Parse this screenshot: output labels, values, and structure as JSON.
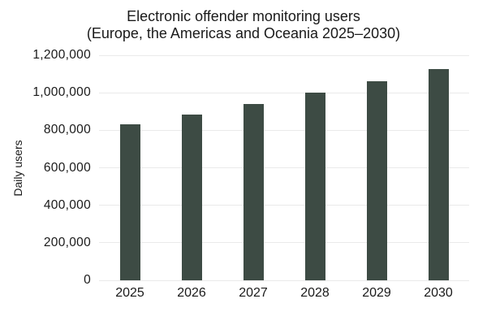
{
  "chart": {
    "title_line1": "Electronic offender monitoring users",
    "title_line2": "(Europe, the Americas and Oceania 2025–2030)",
    "ylabel": "Daily users"
  },
  "chart_data": {
    "type": "bar",
    "title": "Electronic offender monitoring users (Europe, the Americas and Oceania 2025–2030)",
    "categories": [
      "2025",
      "2026",
      "2027",
      "2028",
      "2029",
      "2030"
    ],
    "values": [
      830000,
      885000,
      940000,
      1000000,
      1060000,
      1125000
    ],
    "xlabel": "",
    "ylabel": "Daily users",
    "ylim": [
      0,
      1200000
    ],
    "ytick_step": 200000,
    "ytick_labels": [
      "0",
      "200,000",
      "400,000",
      "600,000",
      "800,000",
      "1,000,000",
      "1,200,000"
    ],
    "grid": "horizontal",
    "legend": "none",
    "bar_color": "#3d4b44"
  },
  "colors": {
    "bar": "#3d4b44",
    "gridline": "#eaeaea",
    "text": "#1a1a1a",
    "background": "#ffffff"
  }
}
